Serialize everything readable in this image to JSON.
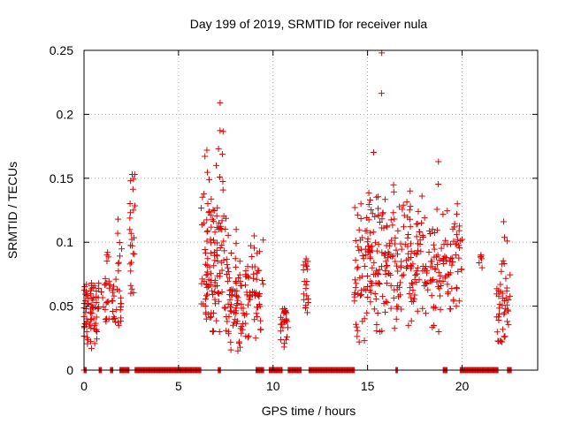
{
  "chart_data": {
    "type": "scatter",
    "title": "Day 199 of 2019, SRMTID for receiver nula",
    "xlabel": "GPS time / hours",
    "ylabel": "SRMTID / TECUs",
    "xlim": [
      0,
      24
    ],
    "ylim": [
      0,
      0.25
    ],
    "xticks": [
      0,
      5,
      10,
      15,
      20
    ],
    "xtick_labels": [
      "0",
      "5",
      "10",
      "15",
      "20"
    ],
    "yticks": [
      0,
      0.05,
      0.1,
      0.15,
      0.2,
      0.25
    ],
    "ytick_labels": [
      "0",
      "0.05",
      "0.1",
      "0.15",
      "0.2",
      "0.25"
    ],
    "grid": true,
    "color": "#e00000",
    "series": [
      {
        "name": "SRMTID",
        "marker": "plus",
        "clusters": [
          {
            "x_range": [
              0.0,
              0.8
            ],
            "center": 0.046,
            "spread": 0.013,
            "count": 70,
            "max": 0.068,
            "min": 0.017
          },
          {
            "x_range": [
              0.9,
              1.6
            ],
            "center": 0.058,
            "spread": 0.016,
            "count": 28,
            "max": 0.092,
            "min": 0.038
          },
          {
            "x_range": [
              1.6,
              2.0
            ],
            "center": 0.063,
            "spread": 0.02,
            "count": 20,
            "max": 0.118,
            "min": 0.035
          },
          {
            "x_range": [
              2.4,
              2.7
            ],
            "center": 0.095,
            "spread": 0.03,
            "count": 22,
            "max": 0.153,
            "min": 0.06
          },
          {
            "x_range": [
              6.2,
              6.8
            ],
            "center": 0.085,
            "spread": 0.035,
            "count": 55,
            "max": 0.172,
            "min": 0.04
          },
          {
            "x_range": [
              6.8,
              7.6
            ],
            "center": 0.1,
            "spread": 0.04,
            "count": 70,
            "max": 0.209,
            "min": 0.03
          },
          {
            "x_range": [
              7.6,
              8.5
            ],
            "center": 0.055,
            "spread": 0.02,
            "count": 65,
            "max": 0.11,
            "min": 0.015
          },
          {
            "x_range": [
              8.5,
              9.5
            ],
            "center": 0.057,
            "spread": 0.018,
            "count": 55,
            "max": 0.105,
            "min": 0.025
          },
          {
            "x_range": [
              10.4,
              10.8
            ],
            "center": 0.037,
            "spread": 0.01,
            "count": 25,
            "max": 0.048,
            "min": 0.018
          },
          {
            "x_range": [
              11.6,
              11.9
            ],
            "center": 0.062,
            "spread": 0.018,
            "count": 18,
            "max": 0.087,
            "min": 0.045
          },
          {
            "x_range": [
              14.3,
              15.0
            ],
            "center": 0.072,
            "spread": 0.025,
            "count": 45,
            "max": 0.13,
            "min": 0.022
          },
          {
            "x_range": [
              15.0,
              16.5
            ],
            "center": 0.09,
            "spread": 0.03,
            "count": 110,
            "max": 0.248,
            "min": 0.03
          },
          {
            "x_range": [
              16.5,
              18.0
            ],
            "center": 0.08,
            "spread": 0.022,
            "count": 90,
            "max": 0.14,
            "min": 0.035
          },
          {
            "x_range": [
              18.0,
              19.5
            ],
            "center": 0.075,
            "spread": 0.022,
            "count": 80,
            "max": 0.163,
            "min": 0.03
          },
          {
            "x_range": [
              19.5,
              20.0
            ],
            "center": 0.09,
            "spread": 0.02,
            "count": 25,
            "max": 0.13,
            "min": 0.05
          },
          {
            "x_range": [
              20.9,
              21.1
            ],
            "center": 0.085,
            "spread": 0.005,
            "count": 3,
            "max": 0.09,
            "min": 0.08
          },
          {
            "x_range": [
              21.8,
              22.6
            ],
            "center": 0.055,
            "spread": 0.018,
            "count": 45,
            "max": 0.116,
            "min": 0.022
          }
        ],
        "zero_segments": [
          [
            0.0,
            0.15
          ],
          [
            0.8,
            0.95
          ],
          [
            1.4,
            1.55
          ],
          [
            1.9,
            2.4
          ],
          [
            2.7,
            6.2
          ],
          [
            7.1,
            7.25
          ],
          [
            9.1,
            9.5
          ],
          [
            9.8,
            10.5
          ],
          [
            10.8,
            11.5
          ],
          [
            11.9,
            14.3
          ],
          [
            16.5,
            16.6
          ],
          [
            19.0,
            19.2
          ],
          [
            19.9,
            21.9
          ],
          [
            22.4,
            22.6
          ]
        ]
      }
    ]
  }
}
